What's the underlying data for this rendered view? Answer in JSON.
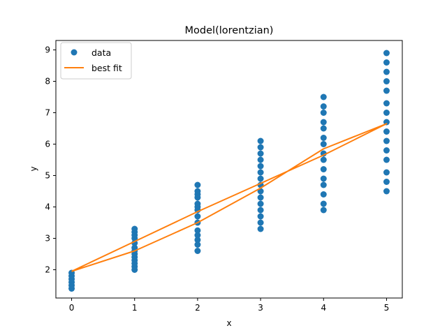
{
  "chart_data": {
    "type": "scatter",
    "title": "Model(lorentzian)",
    "xlabel": "x",
    "ylabel": "y",
    "xlim": [
      -0.25,
      5.25
    ],
    "ylim": [
      1.1,
      9.3
    ],
    "xticks": [
      0,
      1,
      2,
      3,
      4,
      5
    ],
    "yticks": [
      2,
      3,
      4,
      5,
      6,
      7,
      8,
      9
    ],
    "grid": false,
    "legend_position": "top-left",
    "series": [
      {
        "name": "data",
        "kind": "scatter",
        "color": "#1f77b4",
        "points": [
          [
            0,
            1.4
          ],
          [
            0,
            1.5
          ],
          [
            0,
            1.6
          ],
          [
            0,
            1.7
          ],
          [
            0,
            1.8
          ],
          [
            0,
            1.9
          ],
          [
            1,
            2.0
          ],
          [
            1,
            2.1
          ],
          [
            1,
            2.2
          ],
          [
            1,
            2.3
          ],
          [
            1,
            2.4
          ],
          [
            1,
            2.5
          ],
          [
            1,
            2.6
          ],
          [
            1,
            2.7
          ],
          [
            1,
            2.85
          ],
          [
            1,
            3.0
          ],
          [
            1,
            3.1
          ],
          [
            1,
            3.2
          ],
          [
            1,
            3.3
          ],
          [
            2,
            2.6
          ],
          [
            2,
            2.8
          ],
          [
            2,
            2.95
          ],
          [
            2,
            3.1
          ],
          [
            2,
            3.25
          ],
          [
            2,
            3.5
          ],
          [
            2,
            3.7
          ],
          [
            2,
            3.9
          ],
          [
            2,
            4.0
          ],
          [
            2,
            4.1
          ],
          [
            2,
            4.3
          ],
          [
            2,
            4.4
          ],
          [
            2,
            4.5
          ],
          [
            2,
            4.7
          ],
          [
            3,
            3.3
          ],
          [
            3,
            3.5
          ],
          [
            3,
            3.7
          ],
          [
            3,
            3.9
          ],
          [
            3,
            4.1
          ],
          [
            3,
            4.3
          ],
          [
            3,
            4.5
          ],
          [
            3,
            4.7
          ],
          [
            3,
            4.9
          ],
          [
            3,
            5.1
          ],
          [
            3,
            5.3
          ],
          [
            3,
            5.5
          ],
          [
            3,
            5.7
          ],
          [
            3,
            5.9
          ],
          [
            3,
            6.1
          ],
          [
            4,
            3.9
          ],
          [
            4,
            4.1
          ],
          [
            4,
            4.4
          ],
          [
            4,
            4.7
          ],
          [
            4,
            4.9
          ],
          [
            4,
            5.2
          ],
          [
            4,
            5.5
          ],
          [
            4,
            5.7
          ],
          [
            4,
            6.0
          ],
          [
            4,
            6.2
          ],
          [
            4,
            6.5
          ],
          [
            4,
            6.7
          ],
          [
            4,
            7.0
          ],
          [
            4,
            7.2
          ],
          [
            4,
            7.5
          ],
          [
            5,
            4.5
          ],
          [
            5,
            4.8
          ],
          [
            5,
            5.1
          ],
          [
            5,
            5.5
          ],
          [
            5,
            5.8
          ],
          [
            5,
            6.1
          ],
          [
            5,
            6.4
          ],
          [
            5,
            6.7
          ],
          [
            5,
            7.0
          ],
          [
            5,
            7.3
          ],
          [
            5,
            7.7
          ],
          [
            5,
            8.0
          ],
          [
            5,
            8.3
          ],
          [
            5,
            8.6
          ],
          [
            5,
            8.9
          ]
        ]
      },
      {
        "name": "best fit",
        "kind": "line",
        "color": "#ff7f0e",
        "points": [
          [
            0,
            1.95
          ],
          [
            1,
            2.9
          ],
          [
            2,
            3.85
          ],
          [
            3,
            4.75
          ],
          [
            4,
            5.65
          ],
          [
            5,
            6.65
          ],
          [
            4,
            5.85
          ],
          [
            3,
            4.6
          ],
          [
            2,
            3.5
          ],
          [
            1,
            2.6
          ],
          [
            0,
            1.95
          ]
        ]
      }
    ]
  }
}
